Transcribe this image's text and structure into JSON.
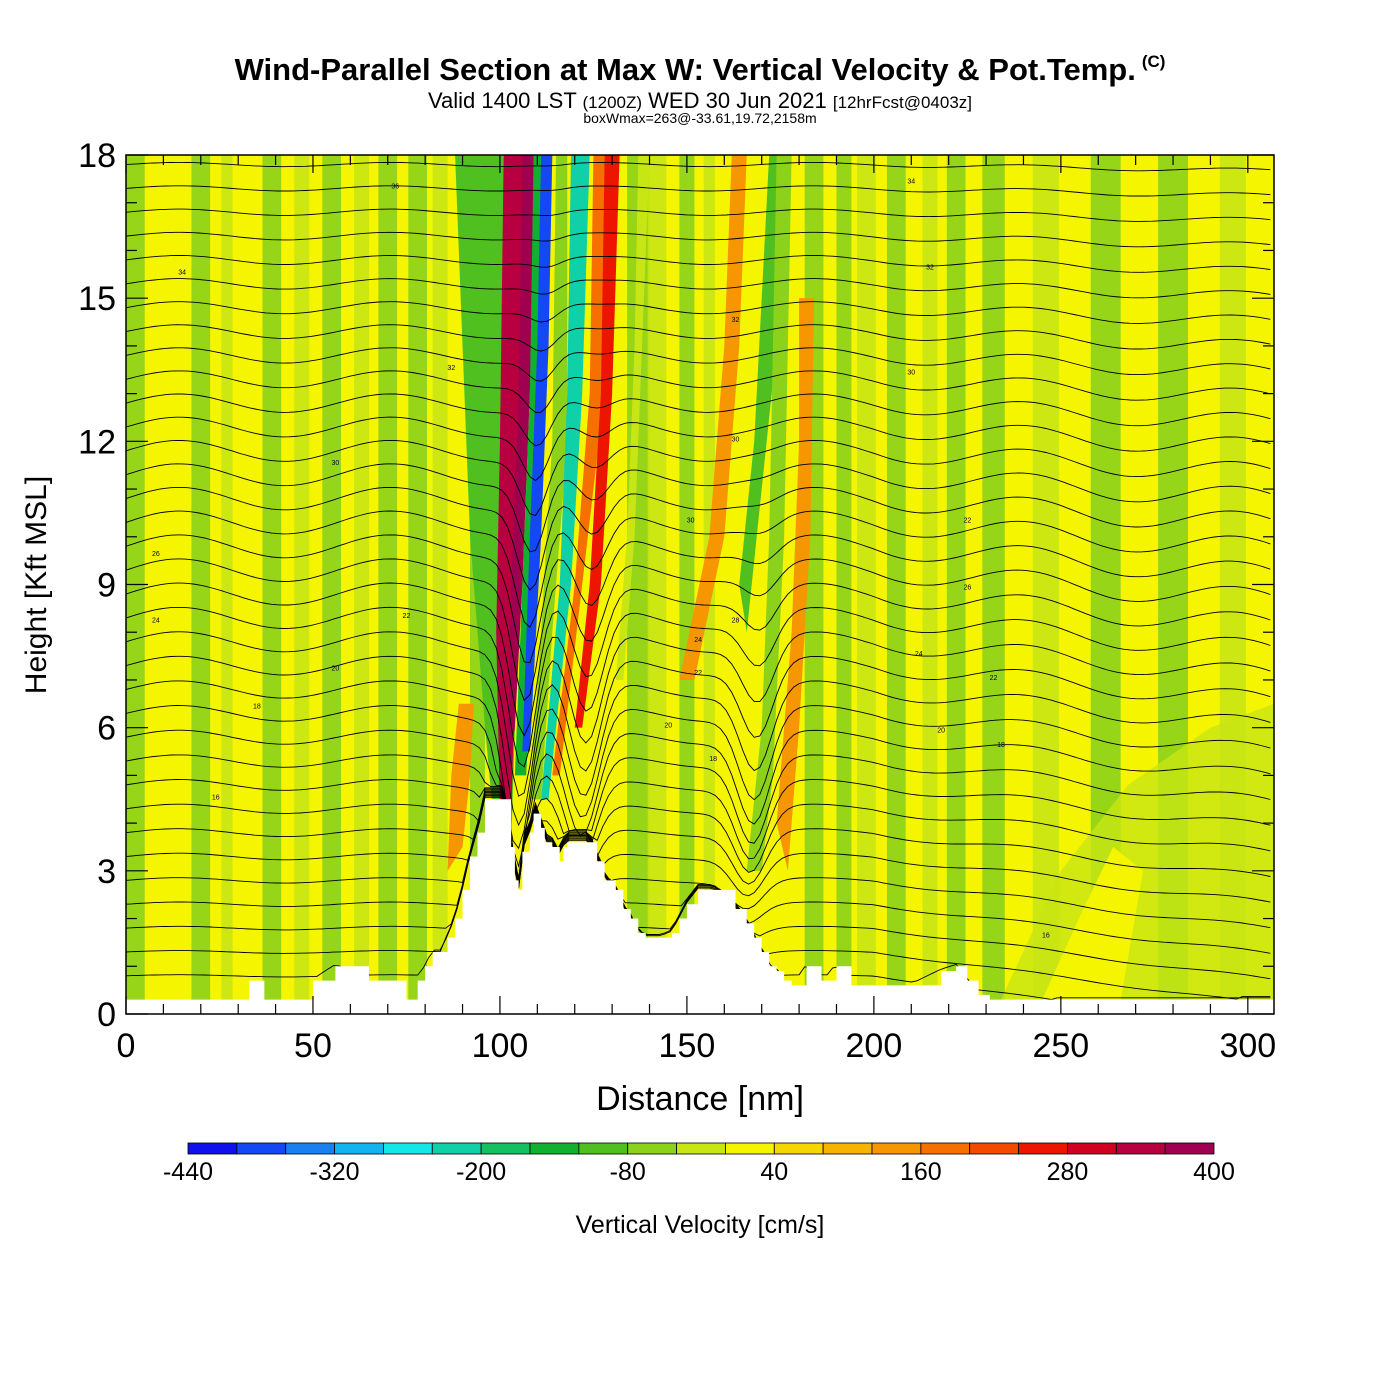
{
  "header": {
    "title": "Wind-Parallel Section at Max W: Vertical Velocity & Pot.Temp.",
    "copyright_mark": "(C)",
    "valid_prefix": "Valid 1400 LST",
    "valid_utc": "(1200Z)",
    "valid_date": "WED 30 Jun 2021",
    "forecast": "[12hrFcst@0403z]",
    "box_wmax": "boxWmax=263@-33.61,19.72,2158m"
  },
  "colors": {
    "terrain": "#ffffff",
    "contour": "#000000",
    "background": "#f5f500"
  },
  "chart_data": {
    "type": "heatmap",
    "xlabel": "Distance [nm]",
    "ylabel": "Height [Kft MSL]",
    "xlim": [
      0,
      307
    ],
    "ylim": [
      0,
      18
    ],
    "xticks": [
      "0",
      "50",
      "100",
      "150",
      "200",
      "250",
      "300"
    ],
    "yticks": [
      "0",
      "3",
      "6",
      "9",
      "12",
      "15",
      "18"
    ],
    "colorbar": {
      "label": "Vertical Velocity [cm/s]",
      "tick_labels": [
        "-440",
        "-320",
        "-200",
        "-80",
        "40",
        "160",
        "280",
        "400"
      ],
      "min": -440,
      "max": 400,
      "step": 40,
      "colors": [
        "#1010ee",
        "#1448f5",
        "#1a80f2",
        "#12b4f0",
        "#14e8e6",
        "#10d0a8",
        "#14c060",
        "#10b030",
        "#50c020",
        "#8cd21a",
        "#c8e614",
        "#f5f500",
        "#f5d600",
        "#f6b400",
        "#f69600",
        "#f67000",
        "#f44a00",
        "#ee1500",
        "#d00020",
        "#b80040",
        "#a00050"
      ]
    },
    "terrain_profile": {
      "distance_nm": [
        0,
        30,
        33,
        37,
        50,
        56,
        65,
        73,
        75,
        78,
        80,
        82,
        84,
        86,
        88,
        90,
        92,
        94,
        96,
        101,
        103,
        104,
        105,
        106,
        108,
        109,
        110,
        111,
        112,
        114,
        116,
        117,
        118,
        119,
        120,
        124,
        126,
        128,
        131,
        133,
        135,
        137,
        139,
        141,
        143,
        146,
        148,
        150,
        153,
        157,
        163,
        166,
        168,
        170,
        172,
        174,
        176,
        178,
        182,
        186,
        190,
        194,
        200,
        210,
        218,
        222,
        225,
        228,
        231,
        235,
        300
      ],
      "height_kft": [
        0.3,
        0.3,
        0.7,
        0.3,
        0.7,
        1.0,
        0.7,
        0.7,
        0.3,
        0.7,
        1.0,
        1.3,
        1.3,
        1.6,
        2.0,
        2.6,
        3.3,
        3.8,
        4.5,
        4.5,
        3.5,
        2.8,
        2.6,
        3.4,
        3.8,
        4.2,
        4.2,
        3.9,
        3.6,
        3.5,
        3.2,
        3.5,
        3.6,
        3.6,
        3.6,
        3.6,
        3.2,
        2.8,
        2.6,
        2.2,
        2.0,
        1.7,
        1.6,
        1.6,
        1.6,
        1.7,
        2.0,
        2.3,
        2.6,
        2.6,
        2.2,
        1.9,
        1.6,
        1.3,
        1.0,
        0.9,
        0.7,
        0.6,
        1.0,
        0.7,
        1.0,
        0.6,
        0.6,
        0.6,
        0.9,
        1.0,
        0.7,
        0.4,
        0.3,
        0.3,
        0.3
      ]
    },
    "vertical_velocity_bands": [
      {
        "center_nm": 103,
        "height_range_kft": [
          3.5,
          18
        ],
        "value_cm_s": 360
      },
      {
        "center_nm": 110,
        "height_range_kft": [
          4.5,
          18
        ],
        "value_cm_s": -400
      },
      {
        "center_nm": 118,
        "height_range_kft": [
          4.5,
          18
        ],
        "value_cm_s": -220
      },
      {
        "center_nm": 129,
        "height_range_kft": [
          3.5,
          18
        ],
        "value_cm_s": 240
      },
      {
        "center_nm": 162,
        "height_range_kft": [
          6,
          18
        ],
        "value_cm_s": 140
      },
      {
        "center_nm": 178,
        "height_range_kft": [
          3,
          15
        ],
        "value_cm_s": 120
      },
      {
        "center_nm": 90,
        "height_range_kft": [
          4,
          6.5
        ],
        "value_cm_s": 120
      },
      {
        "center_nm": 170,
        "height_range_kft": [
          2,
          18
        ],
        "value_cm_s": -90
      }
    ],
    "potential_temperature_contours": {
      "levels": [
        "18",
        "20",
        "22",
        "24",
        "26",
        "28",
        "30",
        "32",
        "34",
        "36"
      ],
      "label_samples": [
        {
          "x_nm": 72,
          "y_kft": 17.3,
          "text": "36"
        },
        {
          "x_nm": 15,
          "y_kft": 15.5,
          "text": "34"
        },
        {
          "x_nm": 87,
          "y_kft": 13.5,
          "text": "32"
        },
        {
          "x_nm": 56,
          "y_kft": 11.5,
          "text": "30"
        },
        {
          "x_nm": 8,
          "y_kft": 9.6,
          "text": "26"
        },
        {
          "x_nm": 8,
          "y_kft": 8.2,
          "text": "24"
        },
        {
          "x_nm": 75,
          "y_kft": 8.3,
          "text": "22"
        },
        {
          "x_nm": 56,
          "y_kft": 7.2,
          "text": "20"
        },
        {
          "x_nm": 35,
          "y_kft": 6.4,
          "text": "18"
        },
        {
          "x_nm": 24,
          "y_kft": 4.5,
          "text": "16"
        },
        {
          "x_nm": 210,
          "y_kft": 13.4,
          "text": "30"
        },
        {
          "x_nm": 215,
          "y_kft": 15.6,
          "text": "32"
        },
        {
          "x_nm": 210,
          "y_kft": 17.4,
          "text": "34"
        },
        {
          "x_nm": 225,
          "y_kft": 10.3,
          "text": "22"
        },
        {
          "x_nm": 225,
          "y_kft": 8.9,
          "text": "26"
        },
        {
          "x_nm": 212,
          "y_kft": 7.5,
          "text": "24"
        },
        {
          "x_nm": 232,
          "y_kft": 7.0,
          "text": "22"
        },
        {
          "x_nm": 218,
          "y_kft": 5.9,
          "text": "20"
        },
        {
          "x_nm": 234,
          "y_kft": 5.6,
          "text": "18"
        },
        {
          "x_nm": 157,
          "y_kft": 5.3,
          "text": "18"
        },
        {
          "x_nm": 246,
          "y_kft": 1.6,
          "text": "16"
        },
        {
          "x_nm": 163,
          "y_kft": 14.5,
          "text": "32"
        },
        {
          "x_nm": 163,
          "y_kft": 12.0,
          "text": "30"
        },
        {
          "x_nm": 151,
          "y_kft": 10.3,
          "text": "30"
        },
        {
          "x_nm": 163,
          "y_kft": 8.2,
          "text": "28"
        },
        {
          "x_nm": 153,
          "y_kft": 7.8,
          "text": "24"
        },
        {
          "x_nm": 153,
          "y_kft": 7.1,
          "text": "22"
        },
        {
          "x_nm": 145,
          "y_kft": 6.0,
          "text": "20"
        }
      ]
    }
  }
}
